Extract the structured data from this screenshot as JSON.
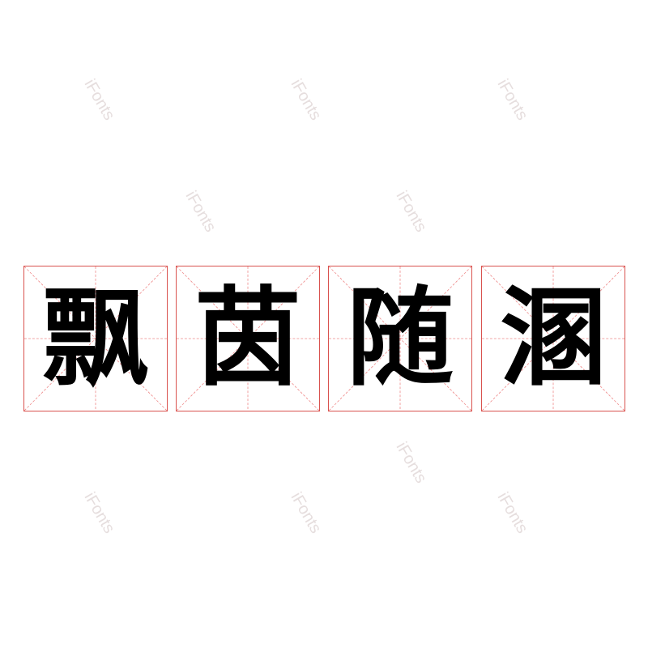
{
  "characters": [
    "飘",
    "茵",
    "随",
    "溷"
  ],
  "watermark": "iFonts",
  "grid_color": "#d9534f",
  "glyph_color": "#000000"
}
